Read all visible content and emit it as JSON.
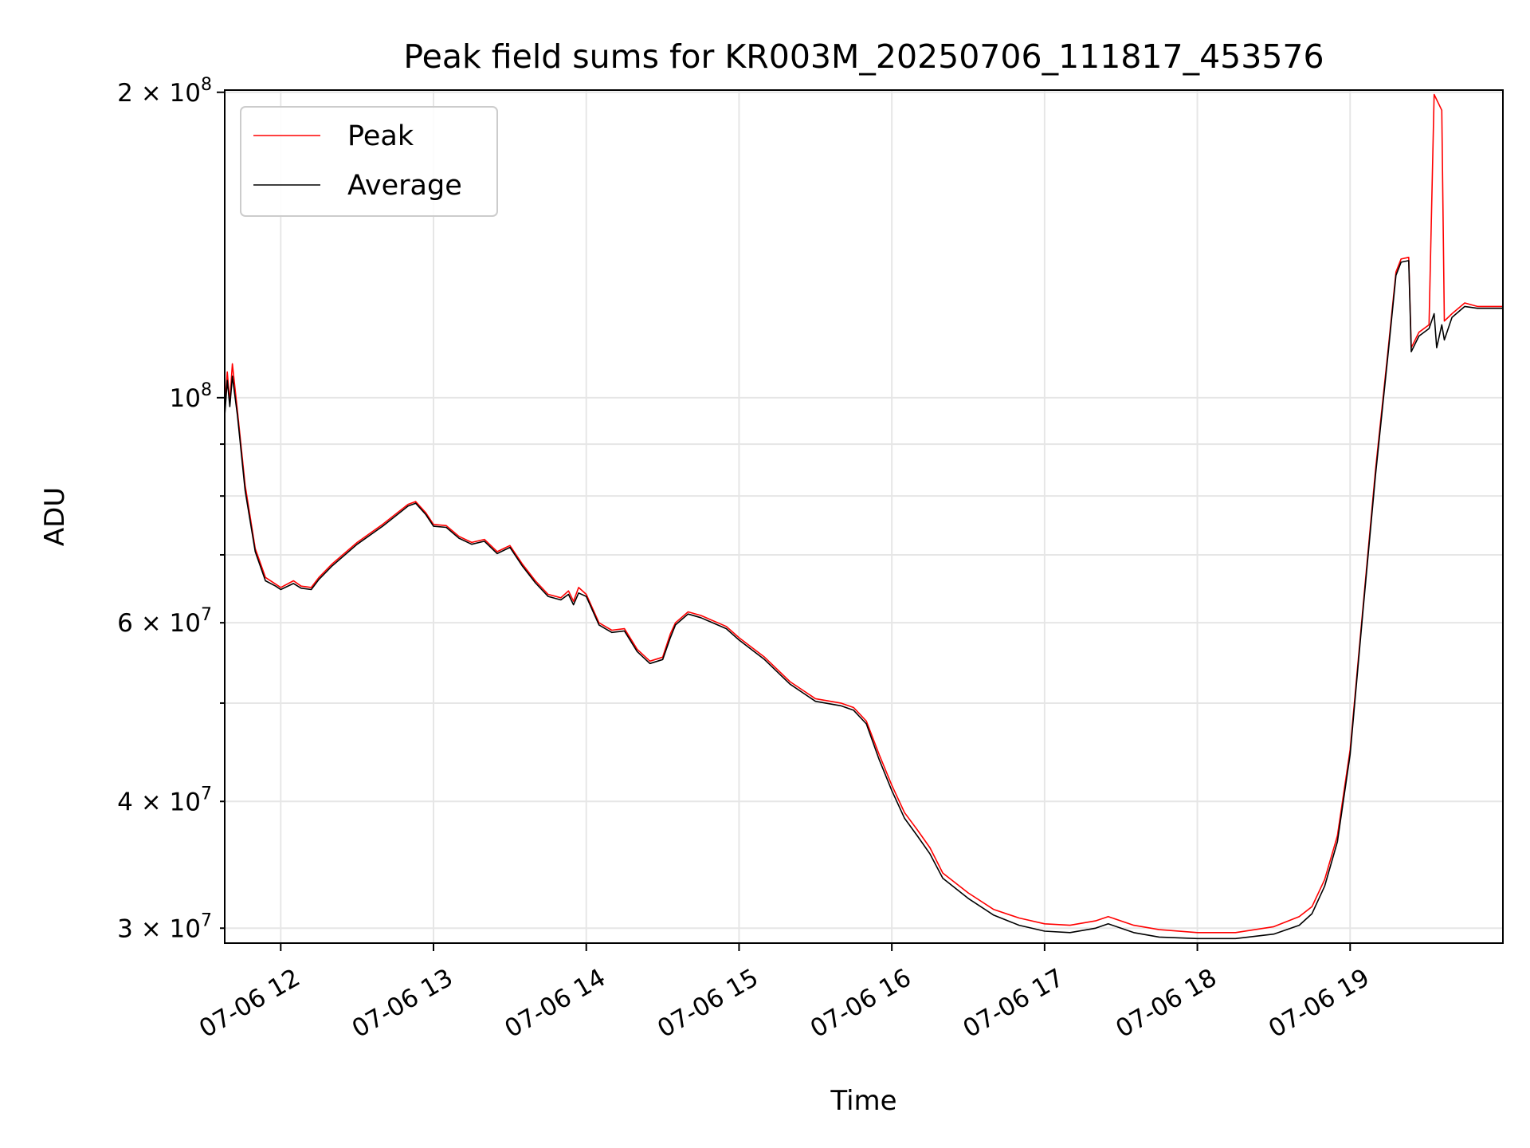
{
  "chart_data": {
    "type": "line",
    "title": "Peak field sums for KR003M_20250706_111817_453576",
    "xlabel": "Time",
    "ylabel": "ADU",
    "yscale": "log",
    "xlim": [
      "2025-07-06 11:38",
      "2025-07-06 20:00"
    ],
    "ylim": [
      29000000,
      201000000
    ],
    "grid": true,
    "legend_position": "upper-left",
    "x_ticks": [
      {
        "t": "2025-07-06 12:00",
        "label": "07-06 12"
      },
      {
        "t": "2025-07-06 13:00",
        "label": "07-06 13"
      },
      {
        "t": "2025-07-06 14:00",
        "label": "07-06 14"
      },
      {
        "t": "2025-07-06 15:00",
        "label": "07-06 15"
      },
      {
        "t": "2025-07-06 16:00",
        "label": "07-06 16"
      },
      {
        "t": "2025-07-06 17:00",
        "label": "07-06 17"
      },
      {
        "t": "2025-07-06 18:00",
        "label": "07-06 18"
      },
      {
        "t": "2025-07-06 19:00",
        "label": "07-06 19"
      }
    ],
    "y_major_ticks": [
      {
        "v": 100000000,
        "base": "10",
        "exp": "8"
      },
      {
        "v": 200000000,
        "base": "2 × 10",
        "exp": "8"
      }
    ],
    "y_minor_ticks": [
      {
        "v": 30000000,
        "base": "3 × 10",
        "exp": "7"
      },
      {
        "v": 40000000,
        "base": "4 × 10",
        "exp": "7"
      },
      {
        "v": 50000000,
        "base": "",
        "exp": ""
      },
      {
        "v": 60000000,
        "base": "6 × 10",
        "exp": "7"
      },
      {
        "v": 70000000,
        "base": "",
        "exp": ""
      },
      {
        "v": 80000000,
        "base": "",
        "exp": ""
      },
      {
        "v": 90000000,
        "base": "",
        "exp": ""
      }
    ],
    "series": [
      {
        "name": "Peak",
        "color": "#ff0000",
        "points": [
          [
            "2025-07-06 11:38",
            97000000
          ],
          [
            "2025-07-06 11:39",
            106000000
          ],
          [
            "2025-07-06 11:40",
            99000000
          ],
          [
            "2025-07-06 11:41",
            108000000
          ],
          [
            "2025-07-06 11:43",
            97000000
          ],
          [
            "2025-07-06 11:46",
            82000000
          ],
          [
            "2025-07-06 11:50",
            71000000
          ],
          [
            "2025-07-06 11:54",
            66500000
          ],
          [
            "2025-07-06 11:58",
            65500000
          ],
          [
            "2025-07-06 12:00",
            65000000
          ],
          [
            "2025-07-06 12:05",
            66000000
          ],
          [
            "2025-07-06 12:08",
            65200000
          ],
          [
            "2025-07-06 12:12",
            65000000
          ],
          [
            "2025-07-06 12:15",
            66500000
          ],
          [
            "2025-07-06 12:20",
            68500000
          ],
          [
            "2025-07-06 12:30",
            72000000
          ],
          [
            "2025-07-06 12:40",
            75000000
          ],
          [
            "2025-07-06 12:50",
            78500000
          ],
          [
            "2025-07-06 12:53",
            79000000
          ],
          [
            "2025-07-06 12:57",
            77000000
          ],
          [
            "2025-07-06 13:00",
            75000000
          ],
          [
            "2025-07-06 13:05",
            74800000
          ],
          [
            "2025-07-06 13:10",
            73000000
          ],
          [
            "2025-07-06 13:15",
            72000000
          ],
          [
            "2025-07-06 13:20",
            72500000
          ],
          [
            "2025-07-06 13:25",
            70500000
          ],
          [
            "2025-07-06 13:30",
            71500000
          ],
          [
            "2025-07-06 13:35",
            68500000
          ],
          [
            "2025-07-06 13:40",
            66000000
          ],
          [
            "2025-07-06 13:45",
            64000000
          ],
          [
            "2025-07-06 13:50",
            63500000
          ],
          [
            "2025-07-06 13:53",
            64500000
          ],
          [
            "2025-07-06 13:55",
            63000000
          ],
          [
            "2025-07-06 13:57",
            65000000
          ],
          [
            "2025-07-06 14:00",
            64000000
          ],
          [
            "2025-07-06 14:05",
            60000000
          ],
          [
            "2025-07-06 14:10",
            59000000
          ],
          [
            "2025-07-06 14:15",
            59200000
          ],
          [
            "2025-07-06 14:20",
            56500000
          ],
          [
            "2025-07-06 14:25",
            55000000
          ],
          [
            "2025-07-06 14:30",
            55500000
          ],
          [
            "2025-07-06 14:33",
            58500000
          ],
          [
            "2025-07-06 14:35",
            60000000
          ],
          [
            "2025-07-06 14:40",
            61500000
          ],
          [
            "2025-07-06 14:45",
            61000000
          ],
          [
            "2025-07-06 14:55",
            59500000
          ],
          [
            "2025-07-06 15:00",
            58000000
          ],
          [
            "2025-07-06 15:10",
            55500000
          ],
          [
            "2025-07-06 15:20",
            52500000
          ],
          [
            "2025-07-06 15:30",
            50500000
          ],
          [
            "2025-07-06 15:40",
            50000000
          ],
          [
            "2025-07-06 15:45",
            49500000
          ],
          [
            "2025-07-06 15:50",
            48000000
          ],
          [
            "2025-07-06 15:55",
            44500000
          ],
          [
            "2025-07-06 16:00",
            41500000
          ],
          [
            "2025-07-06 16:05",
            39000000
          ],
          [
            "2025-07-06 16:10",
            37500000
          ],
          [
            "2025-07-06 16:15",
            36000000
          ],
          [
            "2025-07-06 16:20",
            34000000
          ],
          [
            "2025-07-06 16:30",
            32500000
          ],
          [
            "2025-07-06 16:40",
            31300000
          ],
          [
            "2025-07-06 16:50",
            30700000
          ],
          [
            "2025-07-06 17:00",
            30300000
          ],
          [
            "2025-07-06 17:10",
            30200000
          ],
          [
            "2025-07-06 17:20",
            30500000
          ],
          [
            "2025-07-06 17:25",
            30800000
          ],
          [
            "2025-07-06 17:35",
            30200000
          ],
          [
            "2025-07-06 17:45",
            29900000
          ],
          [
            "2025-07-06 18:00",
            29700000
          ],
          [
            "2025-07-06 18:15",
            29700000
          ],
          [
            "2025-07-06 18:30",
            30100000
          ],
          [
            "2025-07-06 18:40",
            30800000
          ],
          [
            "2025-07-06 18:45",
            31500000
          ],
          [
            "2025-07-06 18:50",
            33500000
          ],
          [
            "2025-07-06 18:55",
            37000000
          ],
          [
            "2025-07-06 19:00",
            45000000
          ],
          [
            "2025-07-06 19:05",
            62000000
          ],
          [
            "2025-07-06 19:10",
            85000000
          ],
          [
            "2025-07-06 19:15",
            112000000
          ],
          [
            "2025-07-06 19:18",
            133000000
          ],
          [
            "2025-07-06 19:20",
            137000000
          ],
          [
            "2025-07-06 19:23",
            137500000
          ],
          [
            "2025-07-06 19:24",
            112000000
          ],
          [
            "2025-07-06 19:27",
            116000000
          ],
          [
            "2025-07-06 19:31",
            118000000
          ],
          [
            "2025-07-06 19:33",
            199000000
          ],
          [
            "2025-07-06 19:36",
            192000000
          ],
          [
            "2025-07-06 19:37",
            119000000
          ],
          [
            "2025-07-06 19:40",
            121000000
          ],
          [
            "2025-07-06 19:45",
            124000000
          ],
          [
            "2025-07-06 19:50",
            123000000
          ],
          [
            "2025-07-06 20:00",
            123000000
          ]
        ]
      },
      {
        "name": "Average",
        "color": "#000000",
        "points": [
          [
            "2025-07-06 11:38",
            96000000
          ],
          [
            "2025-07-06 11:39",
            104000000
          ],
          [
            "2025-07-06 11:40",
            98000000
          ],
          [
            "2025-07-06 11:41",
            105000000
          ],
          [
            "2025-07-06 11:43",
            96000000
          ],
          [
            "2025-07-06 11:46",
            81000000
          ],
          [
            "2025-07-06 11:50",
            70500000
          ],
          [
            "2025-07-06 11:54",
            66000000
          ],
          [
            "2025-07-06 11:58",
            65200000
          ],
          [
            "2025-07-06 12:00",
            64700000
          ],
          [
            "2025-07-06 12:05",
            65600000
          ],
          [
            "2025-07-06 12:08",
            64900000
          ],
          [
            "2025-07-06 12:12",
            64700000
          ],
          [
            "2025-07-06 12:15",
            66200000
          ],
          [
            "2025-07-06 12:20",
            68200000
          ],
          [
            "2025-07-06 12:30",
            71700000
          ],
          [
            "2025-07-06 12:40",
            74700000
          ],
          [
            "2025-07-06 12:50",
            78200000
          ],
          [
            "2025-07-06 12:53",
            78700000
          ],
          [
            "2025-07-06 12:57",
            76700000
          ],
          [
            "2025-07-06 13:00",
            74700000
          ],
          [
            "2025-07-06 13:05",
            74500000
          ],
          [
            "2025-07-06 13:10",
            72700000
          ],
          [
            "2025-07-06 13:15",
            71700000
          ],
          [
            "2025-07-06 13:20",
            72200000
          ],
          [
            "2025-07-06 13:25",
            70200000
          ],
          [
            "2025-07-06 13:30",
            71200000
          ],
          [
            "2025-07-06 13:35",
            68200000
          ],
          [
            "2025-07-06 13:40",
            65700000
          ],
          [
            "2025-07-06 13:45",
            63700000
          ],
          [
            "2025-07-06 13:50",
            63200000
          ],
          [
            "2025-07-06 13:53",
            64000000
          ],
          [
            "2025-07-06 13:55",
            62500000
          ],
          [
            "2025-07-06 13:57",
            64200000
          ],
          [
            "2025-07-06 14:00",
            63700000
          ],
          [
            "2025-07-06 14:05",
            59700000
          ],
          [
            "2025-07-06 14:10",
            58700000
          ],
          [
            "2025-07-06 14:15",
            58900000
          ],
          [
            "2025-07-06 14:20",
            56200000
          ],
          [
            "2025-07-06 14:25",
            54700000
          ],
          [
            "2025-07-06 14:30",
            55200000
          ],
          [
            "2025-07-06 14:33",
            58000000
          ],
          [
            "2025-07-06 14:35",
            59700000
          ],
          [
            "2025-07-06 14:40",
            61200000
          ],
          [
            "2025-07-06 14:45",
            60700000
          ],
          [
            "2025-07-06 14:55",
            59200000
          ],
          [
            "2025-07-06 15:00",
            57700000
          ],
          [
            "2025-07-06 15:10",
            55200000
          ],
          [
            "2025-07-06 15:20",
            52200000
          ],
          [
            "2025-07-06 15:30",
            50200000
          ],
          [
            "2025-07-06 15:40",
            49700000
          ],
          [
            "2025-07-06 15:45",
            49200000
          ],
          [
            "2025-07-06 15:50",
            47700000
          ],
          [
            "2025-07-06 15:55",
            44000000
          ],
          [
            "2025-07-06 16:00",
            41000000
          ],
          [
            "2025-07-06 16:05",
            38500000
          ],
          [
            "2025-07-06 16:10",
            37000000
          ],
          [
            "2025-07-06 16:15",
            35500000
          ],
          [
            "2025-07-06 16:20",
            33600000
          ],
          [
            "2025-07-06 16:30",
            32100000
          ],
          [
            "2025-07-06 16:40",
            30900000
          ],
          [
            "2025-07-06 16:50",
            30200000
          ],
          [
            "2025-07-06 17:00",
            29800000
          ],
          [
            "2025-07-06 17:10",
            29700000
          ],
          [
            "2025-07-06 17:20",
            30000000
          ],
          [
            "2025-07-06 17:25",
            30300000
          ],
          [
            "2025-07-06 17:35",
            29700000
          ],
          [
            "2025-07-06 17:45",
            29400000
          ],
          [
            "2025-07-06 18:00",
            29300000
          ],
          [
            "2025-07-06 18:15",
            29300000
          ],
          [
            "2025-07-06 18:30",
            29600000
          ],
          [
            "2025-07-06 18:40",
            30200000
          ],
          [
            "2025-07-06 18:45",
            31000000
          ],
          [
            "2025-07-06 18:50",
            33000000
          ],
          [
            "2025-07-06 18:55",
            36500000
          ],
          [
            "2025-07-06 19:00",
            44500000
          ],
          [
            "2025-07-06 19:05",
            61500000
          ],
          [
            "2025-07-06 19:10",
            84000000
          ],
          [
            "2025-07-06 19:15",
            111000000
          ],
          [
            "2025-07-06 19:18",
            132000000
          ],
          [
            "2025-07-06 19:20",
            136000000
          ],
          [
            "2025-07-06 19:23",
            136500000
          ],
          [
            "2025-07-06 19:24",
            111000000
          ],
          [
            "2025-07-06 19:27",
            115000000
          ],
          [
            "2025-07-06 19:31",
            117000000
          ],
          [
            "2025-07-06 19:33",
            121000000
          ],
          [
            "2025-07-06 19:34",
            112000000
          ],
          [
            "2025-07-06 19:36",
            118000000
          ],
          [
            "2025-07-06 19:37",
            114000000
          ],
          [
            "2025-07-06 19:40",
            120000000
          ],
          [
            "2025-07-06 19:45",
            123000000
          ],
          [
            "2025-07-06 19:50",
            122500000
          ],
          [
            "2025-07-06 20:00",
            122500000
          ]
        ]
      }
    ]
  }
}
